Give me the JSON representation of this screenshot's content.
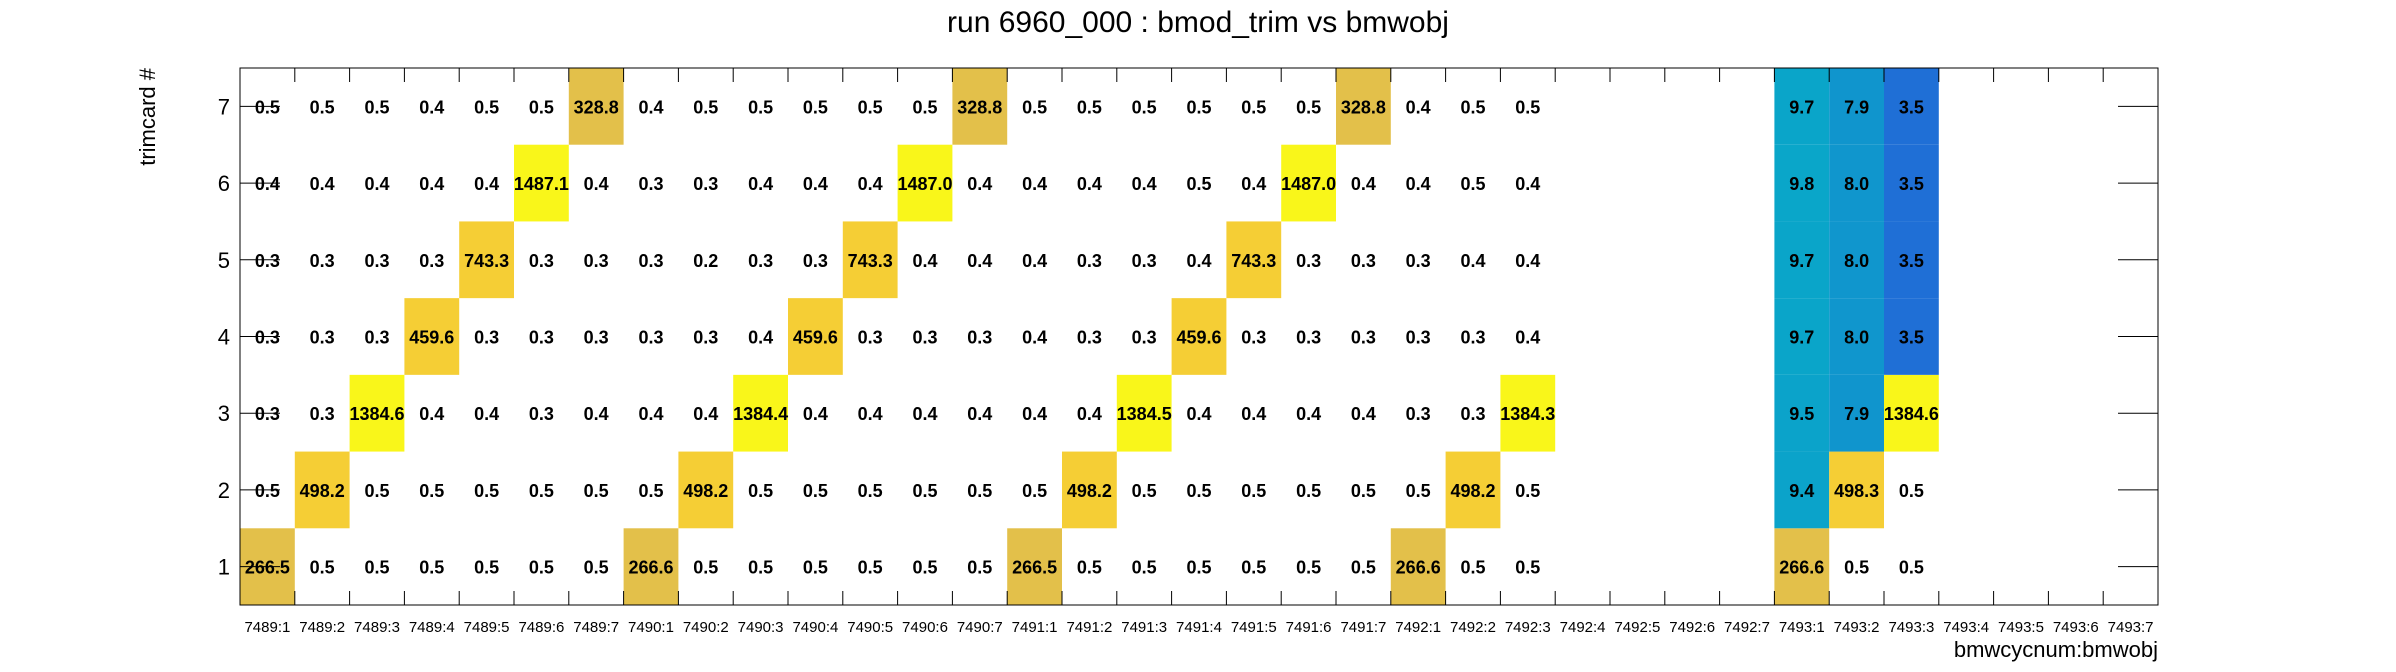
{
  "chart_data": {
    "type": "heatmap",
    "title": "run 6960_000 : bmod_trim vs bmwobj",
    "xlabel": "bmwcycnum:bmwobj",
    "ylabel": "trimcard #",
    "categories": [
      "7489:1",
      "7489:2",
      "7489:3",
      "7489:4",
      "7489:5",
      "7489:6",
      "7489:7",
      "7490:1",
      "7490:2",
      "7490:3",
      "7490:4",
      "7490:5",
      "7490:6",
      "7490:7",
      "7491:1",
      "7491:2",
      "7491:3",
      "7491:4",
      "7491:5",
      "7491:6",
      "7491:7",
      "7492:1",
      "7492:2",
      "7492:3",
      "7492:4",
      "7492:5",
      "7492:6",
      "7492:7",
      "7493:1",
      "7493:2",
      "7493:3",
      "7493:4",
      "7493:5",
      "7493:6",
      "7493:7"
    ],
    "y_categories": [
      "1",
      "2",
      "3",
      "4",
      "5",
      "6",
      "7"
    ],
    "grid": false,
    "colors": {
      "low": "#1f6fd6",
      "mid": "#0aa6c9",
      "high": "#f9f61a",
      "peak": "#e3c04a"
    },
    "rows": [
      {
        "y": "1",
        "values": [
          266.5,
          0.5,
          0.5,
          0.5,
          0.5,
          0.5,
          0.5,
          266.6,
          0.5,
          0.5,
          0.5,
          0.5,
          0.5,
          0.5,
          266.5,
          0.5,
          0.5,
          0.5,
          0.5,
          0.5,
          0.5,
          266.6,
          0.5,
          0.5,
          null,
          null,
          null,
          null,
          266.6,
          0.5,
          0.5,
          null,
          null,
          null,
          null
        ]
      },
      {
        "y": "2",
        "values": [
          0.5,
          498.2,
          0.5,
          0.5,
          0.5,
          0.5,
          0.5,
          0.5,
          498.2,
          0.5,
          0.5,
          0.5,
          0.5,
          0.5,
          0.5,
          498.2,
          0.5,
          0.5,
          0.5,
          0.5,
          0.5,
          0.5,
          498.2,
          0.5,
          null,
          null,
          null,
          null,
          9.4,
          498.3,
          0.5,
          null,
          null,
          null,
          null
        ]
      },
      {
        "y": "3",
        "values": [
          0.3,
          0.3,
          1384.6,
          0.4,
          0.4,
          0.3,
          0.4,
          0.4,
          0.4,
          1384.4,
          0.4,
          0.4,
          0.4,
          0.4,
          0.4,
          0.4,
          1384.5,
          0.4,
          0.4,
          0.4,
          0.4,
          0.3,
          0.3,
          1384.3,
          null,
          null,
          null,
          null,
          9.5,
          7.9,
          1384.6,
          null,
          null,
          null,
          null
        ]
      },
      {
        "y": "4",
        "values": [
          0.3,
          0.3,
          0.3,
          459.6,
          0.3,
          0.3,
          0.3,
          0.3,
          0.3,
          0.4,
          459.6,
          0.3,
          0.3,
          0.3,
          0.4,
          0.3,
          0.3,
          459.6,
          0.3,
          0.3,
          0.3,
          0.3,
          0.3,
          0.4,
          null,
          null,
          null,
          null,
          9.7,
          8.0,
          3.5,
          null,
          null,
          null,
          null
        ]
      },
      {
        "y": "5",
        "values": [
          0.3,
          0.3,
          0.3,
          0.3,
          743.3,
          0.3,
          0.3,
          0.3,
          0.2,
          0.3,
          0.3,
          743.3,
          0.4,
          0.4,
          0.4,
          0.3,
          0.3,
          0.4,
          743.3,
          0.3,
          0.3,
          0.3,
          0.4,
          0.4,
          null,
          null,
          null,
          null,
          9.7,
          8.0,
          3.5,
          null,
          null,
          null,
          null
        ]
      },
      {
        "y": "6",
        "values": [
          0.4,
          0.4,
          0.4,
          0.4,
          0.4,
          1487.1,
          0.4,
          0.3,
          0.3,
          0.4,
          0.4,
          0.4,
          1487.0,
          0.4,
          0.4,
          0.4,
          0.4,
          0.5,
          0.4,
          1487.0,
          0.4,
          0.4,
          0.5,
          0.4,
          null,
          null,
          null,
          null,
          9.8,
          8.0,
          3.5,
          null,
          null,
          null,
          null
        ]
      },
      {
        "y": "7",
        "values": [
          0.5,
          0.5,
          0.5,
          0.4,
          0.5,
          0.5,
          328.8,
          0.4,
          0.5,
          0.5,
          0.5,
          0.5,
          0.5,
          328.8,
          0.5,
          0.5,
          0.5,
          0.5,
          0.5,
          0.5,
          328.8,
          0.4,
          0.5,
          0.5,
          null,
          null,
          null,
          null,
          9.7,
          7.9,
          3.5,
          null,
          null,
          null,
          null
        ]
      }
    ]
  }
}
